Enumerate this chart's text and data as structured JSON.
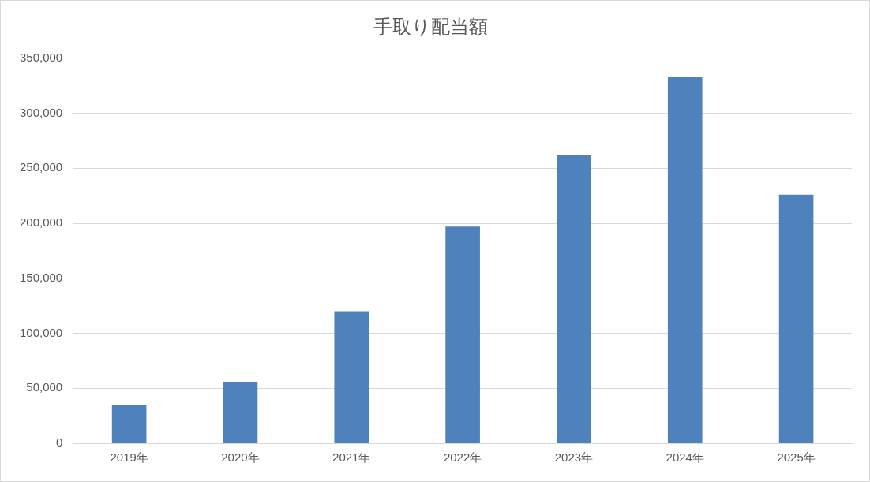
{
  "chart_data": {
    "type": "bar",
    "title": "手取り配当額",
    "categories": [
      "2019年",
      "2020年",
      "2021年",
      "2022年",
      "2023年",
      "2024年",
      "2025年"
    ],
    "values": [
      35000,
      56000,
      120000,
      197000,
      262000,
      333000,
      226000
    ],
    "color": "#4f81bd",
    "ylim": [
      0,
      350000
    ],
    "yticks": [
      0,
      {
        "value": 50000,
        "label": "50,000"
      },
      {
        "value": 100000,
        "label": "100,000"
      },
      {
        "value": 150000,
        "label": "150,000"
      },
      {
        "value": 200000,
        "label": "200,000"
      },
      {
        "value": 250000,
        "label": "250,000"
      },
      {
        "value": 300000,
        "label": "300,000"
      },
      {
        "value": 350000,
        "label": "350,000"
      }
    ],
    "grid": "y",
    "legend": false
  }
}
